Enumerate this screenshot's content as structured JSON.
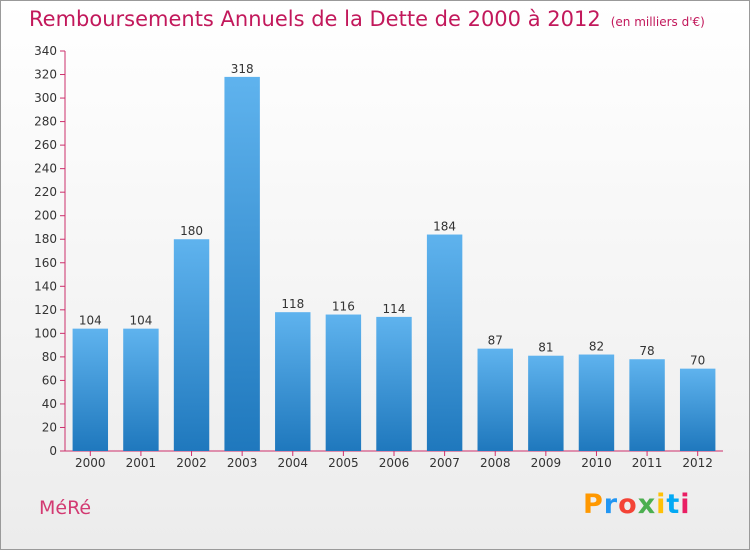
{
  "header": {
    "title": "Remboursements Annuels de la Dette de 2000 à 2012",
    "unit_note": "(en milliers d'€)"
  },
  "footer": {
    "commune": "MéRé",
    "logo": "Proxiti"
  },
  "colors": {
    "title": "#c2185b",
    "bar_top": "#5fb3ee",
    "bar_bottom": "#1f78bd",
    "axis": "#cc2f6b"
  },
  "chart_data": {
    "type": "bar",
    "title": "Remboursements Annuels de la Dette de 2000 à 2012",
    "subtitle": "(en milliers d'€)",
    "xlabel": "",
    "ylabel": "",
    "categories": [
      "2000",
      "2001",
      "2002",
      "2003",
      "2004",
      "2005",
      "2006",
      "2007",
      "2008",
      "2009",
      "2010",
      "2011",
      "2012"
    ],
    "values": [
      104,
      104,
      180,
      318,
      118,
      116,
      114,
      184,
      87,
      81,
      82,
      78,
      70
    ],
    "ylim": [
      0,
      340
    ],
    "yticks": [
      0,
      20,
      40,
      60,
      80,
      100,
      120,
      140,
      160,
      180,
      200,
      220,
      240,
      260,
      280,
      300,
      320,
      340
    ],
    "grid": false,
    "legend": "none",
    "data_labels": true
  }
}
